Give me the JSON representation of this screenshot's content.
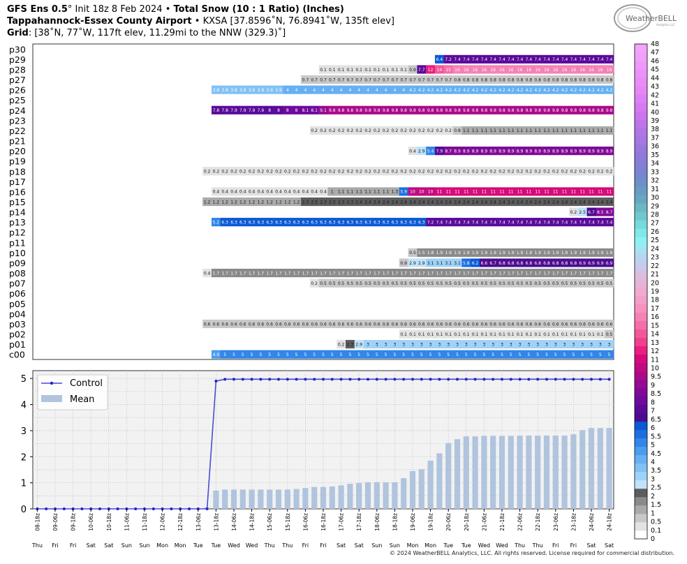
{
  "header": {
    "line1_a": "GFS Ens 0.5",
    "line1_deg": "°",
    "line1_b": " Init 18z 8 Feb 2024 • ",
    "line1_c": "Total Snow (10 : 1 Ratio) (Inches)",
    "line2_a": "Tappahannock-Essex County Airport",
    "line2_b": " • KXSA [37.8596˚N, 76.8941˚W, 135ft elev]",
    "line3_a": "Grid",
    "line3_b": ": [38˚N, 77˚W, 117ft elev, 11.29mi to the NNW (329.3)˚]"
  },
  "logo_text": "WeatherBELL",
  "logo_sub": "Analytics LLC",
  "footer": "© 2024 WeatherBELL Analytics, LLC. All rights reserved. License required for commercial distribution.",
  "chart_data": [
    {
      "type": "heatmap",
      "title": "Total Snow (10 : 1 Ratio) (Inches)",
      "rows": [
        "p30",
        "p29",
        "p28",
        "p27",
        "p26",
        "p25",
        "p24",
        "p23",
        "p22",
        "p21",
        "p20",
        "p19",
        "p18",
        "p17",
        "p16",
        "p15",
        "p14",
        "p13",
        "p12",
        "p11",
        "p10",
        "p09",
        "p08",
        "p07",
        "p06",
        "p05",
        "p04",
        "p03",
        "p02",
        "p01",
        "c00"
      ],
      "columns": [
        "08-18z",
        "09-00z",
        "09-06z",
        "09-12z",
        "09-18z",
        "10-00z",
        "10-06z",
        "10-12z",
        "10-18z",
        "11-00z",
        "11-06z",
        "11-12z",
        "11-18z",
        "12-00z",
        "12-06z",
        "12-12z",
        "12-18z",
        "13-00z",
        "13-06z",
        "13-12z",
        "13-18z",
        "14-00z",
        "14-06z",
        "14-12z",
        "14-18z",
        "15-00z",
        "15-06z",
        "15-12z",
        "15-18z",
        "16-00z",
        "16-06z",
        "16-12z",
        "16-18z",
        "17-00z",
        "17-06z",
        "17-12z",
        "17-18z",
        "18-00z",
        "18-06z",
        "18-12z",
        "18-18z",
        "19-00z",
        "19-06z",
        "19-12z",
        "19-18z",
        "20-00z",
        "20-06z",
        "20-12z",
        "20-18z",
        "21-00z",
        "21-06z",
        "21-12z",
        "21-18z",
        "22-00z",
        "22-06z",
        "22-12z",
        "22-18z",
        "23-00z",
        "23-06z",
        "23-12z",
        "23-18z",
        "24-00z",
        "24-06z",
        "24-12z",
        "24-18z"
      ],
      "member_runs": [
        {
          "row": "p30",
          "segments": []
        },
        {
          "row": "p29",
          "segments": [
            [
              45,
              1,
              6.4
            ],
            [
              46,
              1,
              7.2
            ],
            [
              47,
              18,
              7.4
            ]
          ]
        },
        {
          "row": "p28",
          "segments": [
            [
              32,
              10,
              0.1
            ],
            [
              42,
              1,
              0.9
            ],
            [
              43,
              1,
              7.7
            ],
            [
              44,
              1,
              12
            ],
            [
              45,
              1,
              14
            ],
            [
              46,
              1,
              15
            ],
            [
              47,
              18,
              16
            ]
          ]
        },
        {
          "row": "p27",
          "segments": [
            [
              30,
              35,
              0.7,
              0.8
            ]
          ]
        },
        {
          "row": "p26",
          "segments": [
            [
              20,
              8,
              3.8,
              3.9
            ],
            [
              28,
              14,
              4
            ],
            [
              42,
              23,
              4.2
            ]
          ]
        },
        {
          "row": "p25",
          "segments": []
        },
        {
          "row": "p24",
          "segments": [
            [
              20,
              12,
              7.8,
              8.1
            ],
            [
              32,
              1,
              9.1
            ],
            [
              33,
              32,
              9.8
            ]
          ]
        },
        {
          "row": "p23",
          "segments": []
        },
        {
          "row": "p22",
          "segments": [
            [
              31,
              16,
              0.2
            ],
            [
              47,
              1,
              0.8
            ],
            [
              48,
              17,
              1.1
            ]
          ]
        },
        {
          "row": "p21",
          "segments": []
        },
        {
          "row": "p20",
          "segments": [
            [
              42,
              1,
              0.4
            ],
            [
              43,
              1,
              2.9
            ],
            [
              44,
              1,
              5.4
            ],
            [
              45,
              1,
              7.9
            ],
            [
              46,
              1,
              8.7
            ],
            [
              47,
              18,
              8.9
            ]
          ]
        },
        {
          "row": "p19",
          "segments": []
        },
        {
          "row": "p18",
          "segments": [
            [
              19,
              46,
              0.2
            ]
          ]
        },
        {
          "row": "p17",
          "segments": []
        },
        {
          "row": "p16",
          "segments": [
            [
              20,
              13,
              0.4
            ],
            [
              33,
              1,
              1
            ],
            [
              34,
              6,
              1.1
            ],
            [
              40,
              1,
              1.3
            ],
            [
              41,
              1,
              5.9
            ],
            [
              42,
              3,
              10
            ],
            [
              45,
              20,
              11
            ]
          ]
        },
        {
          "row": "p15",
          "segments": [
            [
              19,
              11,
              1.2
            ],
            [
              30,
              6,
              2.3
            ],
            [
              36,
              29,
              2.4
            ]
          ]
        },
        {
          "row": "p14",
          "segments": [
            [
              60,
              1,
              0.2
            ],
            [
              61,
              1,
              2.5
            ],
            [
              62,
              1,
              6.7
            ],
            [
              63,
              1,
              8.5
            ],
            [
              64,
              1,
              8.7
            ]
          ]
        },
        {
          "row": "p13",
          "segments": [
            [
              20,
              1,
              5.2
            ],
            [
              21,
              23,
              6.3
            ],
            [
              44,
              1,
              7.2
            ],
            [
              45,
              20,
              7.4
            ]
          ]
        },
        {
          "row": "p12",
          "segments": []
        },
        {
          "row": "p11",
          "segments": []
        },
        {
          "row": "p10",
          "segments": [
            [
              42,
              1,
              0.5
            ],
            [
              43,
              1,
              1.5
            ],
            [
              44,
              1,
              1.8
            ],
            [
              45,
              20,
              1.9
            ]
          ]
        },
        {
          "row": "p09",
          "segments": [
            [
              41,
              1,
              0.9
            ],
            [
              42,
              2,
              2.9
            ],
            [
              44,
              4,
              3.1
            ],
            [
              48,
              1,
              5.8
            ],
            [
              49,
              1,
              6.2
            ],
            [
              50,
              1,
              6.6
            ],
            [
              51,
              1,
              6.7
            ],
            [
              52,
              9,
              6.8
            ],
            [
              61,
              4,
              6.9
            ]
          ]
        },
        {
          "row": "p08",
          "segments": [
            [
              19,
              1,
              0.4
            ],
            [
              20,
              45,
              1.7
            ]
          ]
        },
        {
          "row": "p07",
          "segments": [
            [
              31,
              1,
              0.2
            ],
            [
              32,
              33,
              0.5
            ]
          ]
        },
        {
          "row": "p06",
          "segments": []
        },
        {
          "row": "p05",
          "segments": []
        },
        {
          "row": "p04",
          "segments": []
        },
        {
          "row": "p03",
          "segments": [
            [
              19,
              46,
              0.6
            ]
          ]
        },
        {
          "row": "p02",
          "segments": [
            [
              41,
              23,
              0.1
            ],
            [
              64,
              1,
              0.5
            ]
          ]
        },
        {
          "row": "p01",
          "segments": [
            [
              34,
              1,
              0.2
            ],
            [
              35,
              1,
              2.3
            ],
            [
              36,
              1,
              2.9
            ],
            [
              37,
              28,
              3
            ]
          ]
        },
        {
          "row": "c00",
          "segments": [
            [
              20,
              1,
              4.9
            ],
            [
              21,
              44,
              5
            ]
          ]
        }
      ],
      "colorbar_ticks": [
        "0",
        "0.1",
        "0.5",
        "1",
        "1.5",
        "2",
        "2.5",
        "3",
        "3.5",
        "4",
        "4.5",
        "5",
        "5.5",
        "6",
        "6.5",
        "7",
        "8",
        "8.5",
        "9",
        "9.5",
        "10",
        "11",
        "12",
        "13",
        "14",
        "15",
        "16",
        "17",
        "18",
        "19",
        "20",
        "21",
        "22",
        "23",
        "24",
        "25",
        "26",
        "27",
        "28",
        "29",
        "30",
        "31",
        "32",
        "33",
        "34",
        "35",
        "36",
        "37",
        "38",
        "39",
        "40",
        "41",
        "42",
        "43",
        "44",
        "45",
        "46",
        "47",
        "48"
      ],
      "colorbar_colors": [
        "#ffffff",
        "#e2e2e2",
        "#c8c8c8",
        "#aaaaaa",
        "#8a8a8a",
        "#5c5c5c",
        "#bfe3fa",
        "#9fd2f8",
        "#80c1f5",
        "#66b0f2",
        "#4b9cee",
        "#3286e8",
        "#1c6fe0",
        "#0b5ad5",
        "#4b0c91",
        "#5a0a99",
        "#6e0a9c",
        "#800a98",
        "#950a92",
        "#aa0a8a",
        "#c00a82",
        "#d60a7a",
        "#e91e7e",
        "#ef3f8d",
        "#f2579c",
        "#f46ea9",
        "#f581b5",
        "#f692c0",
        "#f39fc9",
        "#eeaad0",
        "#e7b3d6",
        "#dbbde0",
        "#c9c9ec",
        "#b8d4f0",
        "#a5e3f2",
        "#8ff0f0",
        "#7fe8e8",
        "#76d9dd",
        "#6fc8d0",
        "#6ab8c6",
        "#67a7c0",
        "#699bc4",
        "#6e90c8",
        "#7786cf",
        "#827fd4",
        "#8e7ad9",
        "#9977dd",
        "#a676e2",
        "#b274e6",
        "#bf74ea",
        "#cb75ef",
        "#d57af2",
        "#de80f5",
        "#e586f8",
        "#e88cf8",
        "#ea92f8",
        "#ed99f9",
        "#f0a0fa",
        "#f2a6fb"
      ]
    },
    {
      "type": "line",
      "series": [
        {
          "name": "Control",
          "values": [
            0,
            0,
            0,
            0,
            0,
            0,
            0,
            0,
            0,
            0,
            0,
            0,
            0,
            0,
            0,
            0,
            0,
            0,
            0,
            0,
            4.9,
            4.97,
            4.97,
            4.97,
            4.97,
            4.97,
            4.97,
            4.97,
            4.97,
            4.97,
            4.97,
            4.97,
            4.97,
            4.97,
            4.97,
            4.97,
            4.97,
            4.97,
            4.97,
            4.97,
            4.97,
            4.97,
            4.97,
            4.97,
            4.97,
            4.97,
            4.97,
            4.97,
            4.97,
            4.97,
            4.97,
            4.97,
            4.97,
            4.97,
            4.97,
            4.97,
            4.97,
            4.97,
            4.97,
            4.97,
            4.97,
            4.97,
            4.97,
            4.97,
            4.97
          ]
        },
        {
          "name": "Mean",
          "type": "bar",
          "values": [
            0,
            0,
            0,
            0,
            0,
            0,
            0,
            0,
            0,
            0,
            0,
            0,
            0,
            0,
            0,
            0,
            0,
            0,
            0,
            0.05,
            0.7,
            0.74,
            0.74,
            0.74,
            0.74,
            0.74,
            0.74,
            0.74,
            0.74,
            0.76,
            0.8,
            0.84,
            0.84,
            0.86,
            0.9,
            0.96,
            0.99,
            1.02,
            1.02,
            1.02,
            1.02,
            1.18,
            1.45,
            1.52,
            1.85,
            2.13,
            2.52,
            2.67,
            2.78,
            2.78,
            2.8,
            2.8,
            2.8,
            2.8,
            2.81,
            2.81,
            2.81,
            2.81,
            2.81,
            2.81,
            2.86,
            3.02,
            3.1,
            3.1,
            3.1
          ]
        }
      ],
      "ylim": [
        0,
        5.3
      ],
      "yticks": [
        "0",
        "1",
        "2",
        "3",
        "4",
        "5"
      ],
      "xticks": [
        "08-18z",
        "09-00z",
        "09-06z",
        "09-12z",
        "09-18z",
        "10-00z",
        "10-06z",
        "10-12z",
        "10-18z",
        "11-00z",
        "11-06z",
        "11-12z",
        "11-18z",
        "12-00z",
        "12-06z",
        "12-12z",
        "12-18z",
        "13-00z",
        "13-06z",
        "13-12z",
        "13-18z",
        "14-00z",
        "14-06z",
        "14-12z",
        "14-18z",
        "15-00z",
        "15-06z",
        "15-12z",
        "15-18z",
        "16-00z",
        "16-06z",
        "16-12z",
        "16-18z",
        "17-00z",
        "17-06z",
        "17-12z",
        "17-18z",
        "18-00z",
        "18-06z",
        "18-12z",
        "18-18z",
        "19-00z",
        "19-06z",
        "19-12z",
        "19-18z",
        "20-00z",
        "20-06z",
        "20-12z",
        "20-18z",
        "21-00z",
        "21-06z",
        "21-12z",
        "21-18z",
        "22-00z",
        "22-06z",
        "22-12z",
        "22-18z",
        "23-00z",
        "23-06z",
        "23-12z",
        "23-18z",
        "24-00z",
        "24-06z",
        "24-12z",
        "24-18z"
      ],
      "xtick_labels_shown": [
        "08-18z",
        "09-06z",
        "09-18z",
        "10-06z",
        "10-18z",
        "11-06z",
        "11-18z",
        "12-06z",
        "12-18z",
        "13-06z",
        "13-18z",
        "14-06z",
        "14-18z",
        "15-06z",
        "15-18z",
        "16-06z",
        "16-18z",
        "17-06z",
        "17-18z",
        "18-06z",
        "18-18z",
        "19-06z",
        "19-18z",
        "20-06z",
        "20-18z",
        "21-06z",
        "21-18z",
        "22-06z",
        "22-18z",
        "23-06z",
        "23-18z",
        "24-06z",
        "24-18z"
      ],
      "day_labels": [
        "Thu",
        "Fri",
        "Fri",
        "Sat",
        "Sat",
        "Sun",
        "Sun",
        "Mon",
        "Mon",
        "Tue",
        "Tue",
        "Wed",
        "Wed",
        "Thu",
        "Thu",
        "Fri",
        "Fri",
        "Sat",
        "Sat",
        "Sun",
        "Sun",
        "Mon",
        "Mon",
        "Tue",
        "Tue",
        "Wed",
        "Wed",
        "Thu",
        "Thu",
        "Fri",
        "Fri",
        "Sat",
        "Sat"
      ],
      "legend_position": "top-left",
      "grid": true,
      "colors": {
        "control": "#4a4ad6",
        "mean": "#b0c4de"
      }
    }
  ]
}
